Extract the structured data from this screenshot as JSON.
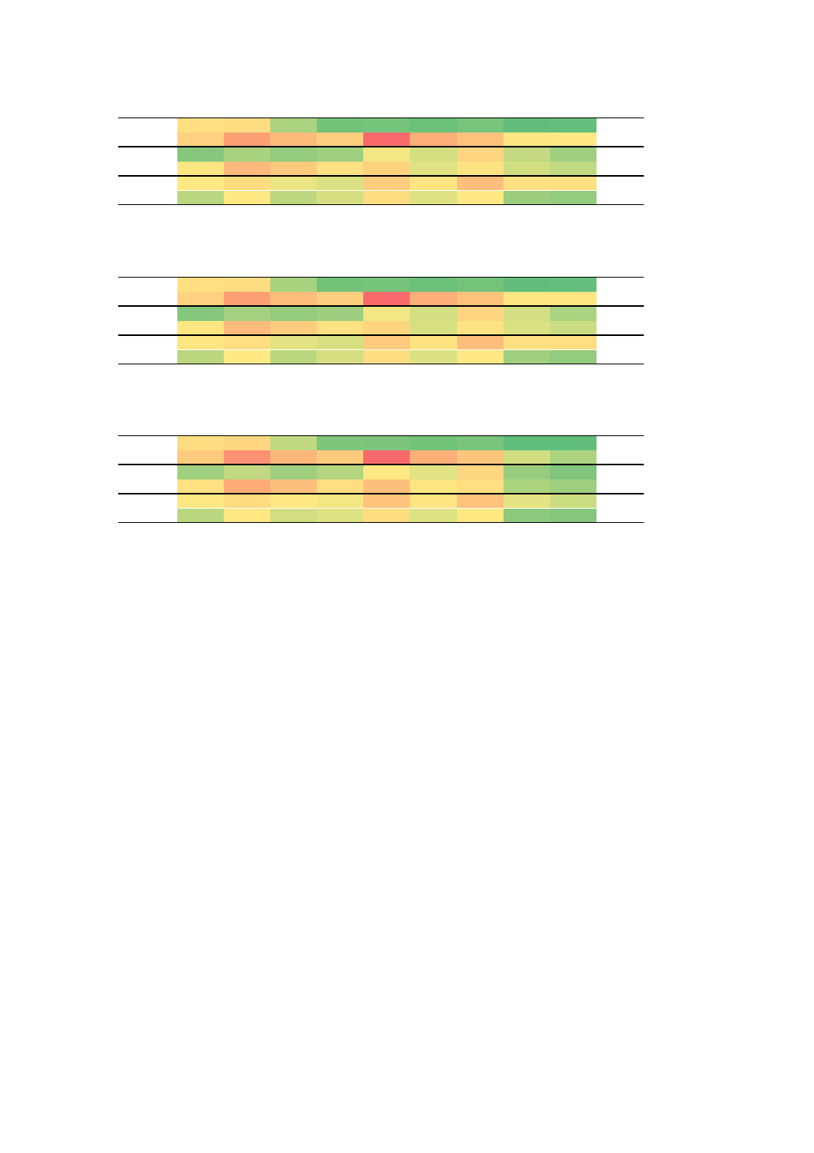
{
  "tables": [
    {
      "cell_colors": [
        [
          "#FEE082",
          "#FEDC81",
          "#ABD27F",
          "#73C27A",
          "#76C37B",
          "#6CC17A",
          "#78C47C",
          "#63BE7B",
          "#64BF7C"
        ],
        [
          "#FED280",
          "#FC9F75",
          "#FDBB7B",
          "#FDCD7E",
          "#F8696B",
          "#FCAE78",
          "#FDC37C",
          "#FEE783",
          "#FEE883"
        ],
        [
          "#86C77D",
          "#A9D27F",
          "#94CB7E",
          "#A0CF7F",
          "#F3E783",
          "#D4DF82",
          "#FED580",
          "#C4D981",
          "#A0CF7F"
        ],
        [
          "#FEE683",
          "#FDB97B",
          "#FECA7E",
          "#FEE182",
          "#FED27F",
          "#DFE283",
          "#FEE382",
          "#D1DE82",
          "#C1D980"
        ],
        [
          "#FEE883",
          "#FEDD81",
          "#EBE483",
          "#DBE082",
          "#FDCC7E",
          "#FEE482",
          "#FDBE7B",
          "#FEE082",
          "#FEDF81"
        ],
        [
          "#B9D780",
          "#FEE983",
          "#BCD780",
          "#D5DF82",
          "#FEDC81",
          "#DEE283",
          "#FEE883",
          "#9CCD7E",
          "#94CB7E"
        ]
      ]
    },
    {
      "cell_colors": [
        [
          "#FEE082",
          "#FEDC81",
          "#A9D27F",
          "#72C27A",
          "#76C37B",
          "#6BC17A",
          "#75C37B",
          "#63BE7B",
          "#64BF7C"
        ],
        [
          "#FED280",
          "#FC9F75",
          "#FDBD7B",
          "#FDCD7E",
          "#F8696B",
          "#FCAE78",
          "#FDC37C",
          "#FEE683",
          "#FEE683"
        ],
        [
          "#84C77D",
          "#A4D07F",
          "#94CB7E",
          "#9ECE7F",
          "#F3E783",
          "#D3DF82",
          "#FED580",
          "#D3DF82",
          "#ACD37F"
        ],
        [
          "#FEE683",
          "#FDBB7B",
          "#FECC7E",
          "#FEE182",
          "#FED580",
          "#D6E082",
          "#FEE382",
          "#DAE182",
          "#CADC81"
        ],
        [
          "#FEE683",
          "#FEDE81",
          "#E4E383",
          "#D6E082",
          "#FECA7E",
          "#FEE382",
          "#FDBE7B",
          "#FEDF81",
          "#FEDE81"
        ],
        [
          "#BAD780",
          "#FEE983",
          "#BAD780",
          "#D5DF82",
          "#FEDC81",
          "#DCE283",
          "#FEE883",
          "#A0CF7F",
          "#94CB7E"
        ]
      ]
    },
    {
      "cell_colors": [
        [
          "#FEDC81",
          "#FED580",
          "#C1D980",
          "#7FC57C",
          "#7CC47C",
          "#72C27A",
          "#7AC47C",
          "#62BE7B",
          "#62BE7B"
        ],
        [
          "#FECA7E",
          "#FC9273",
          "#FDB77A",
          "#FECB7E",
          "#F8696B",
          "#FCB078",
          "#FDC67D",
          "#D1DE82",
          "#ACD37F"
        ],
        [
          "#A0CF7F",
          "#C3D981",
          "#A0CF7F",
          "#B3D580",
          "#FEE983",
          "#E2E383",
          "#FED580",
          "#97CC7E",
          "#80C57C"
        ],
        [
          "#FEE282",
          "#FCAA77",
          "#FDC07C",
          "#FEDE81",
          "#FDC07C",
          "#FEE783",
          "#FEE082",
          "#ACD37F",
          "#9ECE7F"
        ],
        [
          "#FEE883",
          "#FEDB81",
          "#FEE883",
          "#F3E783",
          "#FDC37C",
          "#FEE482",
          "#FDC27C",
          "#E4E383",
          "#CCDC81"
        ],
        [
          "#B9D780",
          "#FEE883",
          "#D1DE82",
          "#DEE283",
          "#FEDC81",
          "#DDE283",
          "#FEE983",
          "#8ECA7E",
          "#86C77D"
        ]
      ]
    }
  ]
}
